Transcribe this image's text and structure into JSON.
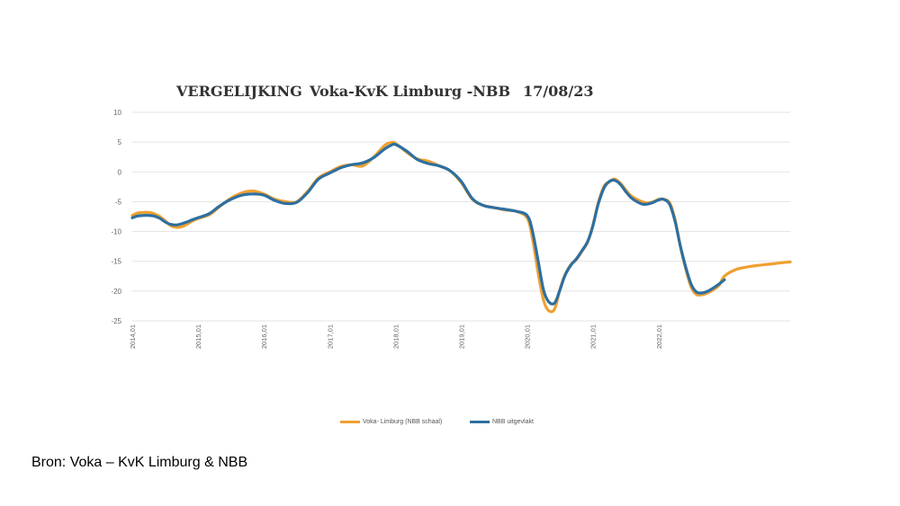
{
  "title": {
    "part1": "VERGELIJKING",
    "part2": "Voka-KvK Limburg -NBB",
    "part3": "17/08/23"
  },
  "source": "Bron:  Voka – KvK Limburg & NBB",
  "chart_data": {
    "type": "line",
    "ylim": [
      -25,
      10
    ],
    "yticks": [
      10,
      5,
      0,
      -5,
      -10,
      -15,
      -20,
      -25
    ],
    "x_range": [
      2014.0,
      2024.0
    ],
    "xticks": [
      {
        "label": "2014,01",
        "x": 2014.0
      },
      {
        "label": "2015,01",
        "x": 2015.0
      },
      {
        "label": "2016,01",
        "x": 2016.0
      },
      {
        "label": "2017,01",
        "x": 2017.0
      },
      {
        "label": "2018,01",
        "x": 2018.0
      },
      {
        "label": "2019,01",
        "x": 2019.0
      },
      {
        "label": "2020,01",
        "x": 2020.0
      },
      {
        "label": "2021,01",
        "x": 2021.0
      },
      {
        "label": "2022,01",
        "x": 2022.0
      }
    ],
    "grid": true,
    "legend": "bottom",
    "series": [
      {
        "name": "Voka- Limburg (NBB schaal)",
        "color": "#F0A030",
        "x": [
          2014.0,
          2014.08,
          2014.17,
          2014.25,
          2014.33,
          2014.42,
          2014.5,
          2014.58,
          2014.67,
          2014.75,
          2014.83,
          2014.92,
          2015.0,
          2015.17,
          2015.33,
          2015.5,
          2015.67,
          2015.83,
          2016.0,
          2016.17,
          2016.33,
          2016.5,
          2016.67,
          2016.83,
          2017.0,
          2017.17,
          2017.33,
          2017.5,
          2017.67,
          2017.83,
          2017.92,
          2018.0,
          2018.17,
          2018.33,
          2018.5,
          2018.67,
          2018.83,
          2019.0,
          2019.17,
          2019.33,
          2019.5,
          2019.67,
          2019.83,
          2020.0,
          2020.08,
          2020.17,
          2020.25,
          2020.33,
          2020.42,
          2020.5,
          2020.58,
          2020.67,
          2020.75,
          2020.83,
          2020.92,
          2021.0,
          2021.08,
          2021.17,
          2021.25,
          2021.33,
          2021.42,
          2021.5,
          2021.58,
          2021.67,
          2021.75,
          2021.83,
          2021.92,
          2022.0,
          2022.08,
          2022.17,
          2022.25,
          2022.33,
          2022.42,
          2022.5,
          2022.58,
          2022.67,
          2022.75,
          2022.83,
          2022.92,
          2023.0,
          2023.17,
          2023.33,
          2023.5,
          2023.67,
          2023.83,
          2024.0
        ],
        "values": [
          -7.3,
          -6.9,
          -6.8,
          -6.8,
          -7.0,
          -7.5,
          -8.2,
          -9.0,
          -9.3,
          -9.2,
          -8.8,
          -8.2,
          -7.8,
          -7.2,
          -5.8,
          -4.4,
          -3.5,
          -3.2,
          -3.7,
          -4.6,
          -5.0,
          -5.0,
          -3.2,
          -1.0,
          0.0,
          0.9,
          1.2,
          1.0,
          2.5,
          4.4,
          4.9,
          4.8,
          3.3,
          2.2,
          1.8,
          1.0,
          0.2,
          -1.8,
          -4.6,
          -5.6,
          -6.0,
          -6.4,
          -6.6,
          -7.7,
          -11.0,
          -17.0,
          -21.5,
          -23.3,
          -23.0,
          -19.7,
          -17.2,
          -15.5,
          -14.7,
          -13.4,
          -11.8,
          -9.0,
          -5.3,
          -2.4,
          -1.7,
          -1.2,
          -1.9,
          -3.0,
          -4.0,
          -4.6,
          -5.0,
          -5.2,
          -5.0,
          -4.6,
          -4.6,
          -5.2,
          -8.0,
          -12.5,
          -16.6,
          -19.5,
          -20.6,
          -20.6,
          -20.3,
          -19.8,
          -19.0,
          -17.5,
          -16.4,
          -16.0,
          -15.7,
          -15.5,
          -15.3,
          -15.1
        ]
      },
      {
        "name": "NBB  uitgevlakt",
        "color": "#2E6FA0",
        "x": [
          2014.0,
          2014.08,
          2014.17,
          2014.25,
          2014.33,
          2014.42,
          2014.5,
          2014.58,
          2014.67,
          2014.75,
          2014.83,
          2014.92,
          2015.0,
          2015.17,
          2015.33,
          2015.5,
          2015.67,
          2015.83,
          2016.0,
          2016.17,
          2016.33,
          2016.5,
          2016.67,
          2016.83,
          2017.0,
          2017.17,
          2017.33,
          2017.5,
          2017.67,
          2017.83,
          2017.92,
          2018.0,
          2018.17,
          2018.33,
          2018.5,
          2018.67,
          2018.83,
          2019.0,
          2019.17,
          2019.33,
          2019.5,
          2019.67,
          2019.83,
          2020.0,
          2020.08,
          2020.17,
          2020.25,
          2020.33,
          2020.42,
          2020.5,
          2020.58,
          2020.67,
          2020.75,
          2020.83,
          2020.92,
          2021.0,
          2021.08,
          2021.17,
          2021.25,
          2021.33,
          2021.42,
          2021.5,
          2021.58,
          2021.67,
          2021.75,
          2021.83,
          2021.92,
          2022.0,
          2022.08,
          2022.17,
          2022.25,
          2022.33,
          2022.42,
          2022.5,
          2022.58,
          2022.67,
          2022.75,
          2022.83,
          2022.92,
          2023.0
        ],
        "values": [
          -7.7,
          -7.4,
          -7.3,
          -7.3,
          -7.4,
          -7.8,
          -8.4,
          -8.8,
          -8.9,
          -8.7,
          -8.4,
          -8.0,
          -7.7,
          -7.0,
          -5.7,
          -4.6,
          -3.9,
          -3.7,
          -3.9,
          -4.8,
          -5.3,
          -5.1,
          -3.4,
          -1.2,
          -0.2,
          0.7,
          1.2,
          1.5,
          2.4,
          3.8,
          4.4,
          4.6,
          3.5,
          2.1,
          1.4,
          1.0,
          0.2,
          -1.6,
          -4.5,
          -5.6,
          -6.0,
          -6.3,
          -6.6,
          -7.3,
          -9.8,
          -15.0,
          -19.8,
          -21.8,
          -22.0,
          -19.8,
          -17.3,
          -15.6,
          -14.6,
          -13.3,
          -11.7,
          -9.1,
          -5.5,
          -2.7,
          -1.6,
          -1.4,
          -2.1,
          -3.3,
          -4.3,
          -5.0,
          -5.4,
          -5.4,
          -5.1,
          -4.7,
          -4.6,
          -5.5,
          -8.3,
          -12.4,
          -16.3,
          -19.0,
          -20.2,
          -20.3,
          -20.0,
          -19.5,
          -18.8,
          -18.1
        ]
      }
    ]
  }
}
